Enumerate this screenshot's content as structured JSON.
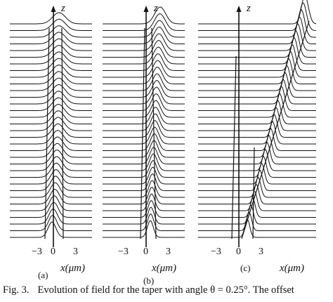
{
  "figure": {
    "axis_symbol": "z",
    "panels": [
      {
        "label": "(a)",
        "x_tick_labels": [
          "−3",
          "0",
          "3"
        ],
        "x_axis_label": "x(μm)"
      },
      {
        "label": "(b)",
        "x_tick_labels": [
          "−3",
          "0",
          "3"
        ],
        "x_axis_label": "x(μm)"
      },
      {
        "label": "(c)",
        "x_tick_labels": [
          "−3",
          "0",
          "3"
        ],
        "x_axis_label": "x(μm)"
      }
    ],
    "caption": {
      "number": "Fig. 3.",
      "text": "Evolution of field for the taper with angle θ = 0.25°. The offset"
    }
  }
}
